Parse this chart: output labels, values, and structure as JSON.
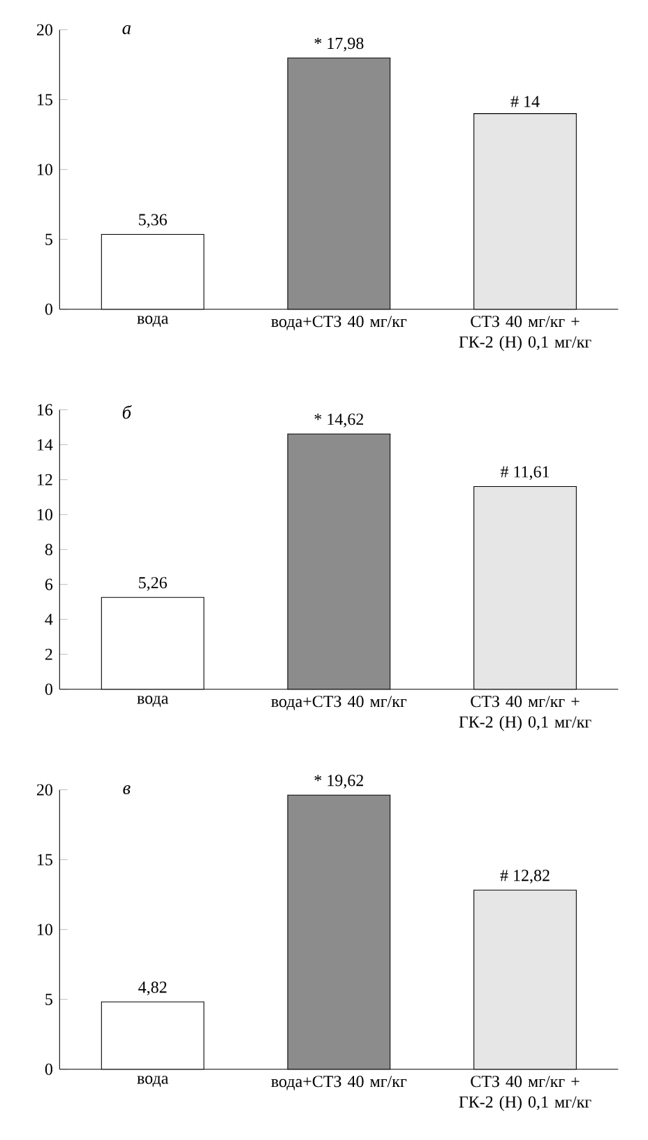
{
  "chart_data": [
    {
      "type": "bar",
      "title": "а",
      "categories": [
        "вода",
        "вода+СТЗ 40 мг/кг",
        "СТЗ 40 мг/кг + ГК-2 (Н) 0,1 мг/кг"
      ],
      "values": [
        5.36,
        17.98,
        14
      ],
      "value_labels": [
        "5,36",
        "* 17,98",
        "# 14"
      ],
      "colors": [
        "#ffffff",
        "#8c8c8c",
        "#e6e6e6"
      ],
      "ylim": [
        0,
        20
      ],
      "yticks": [
        0,
        5,
        10,
        15,
        20
      ]
    },
    {
      "type": "bar",
      "title": "б",
      "categories": [
        "вода",
        "вода+СТЗ 40 мг/кг",
        "СТЗ 40 мг/кг + ГК-2 (Н) 0,1 мг/кг"
      ],
      "values": [
        5.26,
        14.62,
        11.61
      ],
      "value_labels": [
        "5,26",
        "* 14,62",
        "# 11,61"
      ],
      "colors": [
        "#ffffff",
        "#8c8c8c",
        "#e6e6e6"
      ],
      "ylim": [
        0,
        16
      ],
      "yticks": [
        0,
        2,
        4,
        6,
        8,
        10,
        12,
        14,
        16
      ]
    },
    {
      "type": "bar",
      "title": "в",
      "categories": [
        "вода",
        "вода+СТЗ 40 мг/кг",
        "СТЗ 40 мг/кг + ГК-2 (Н) 0,1 мг/кг"
      ],
      "values": [
        4.82,
        19.62,
        12.82
      ],
      "value_labels": [
        "4,82",
        "* 19,62",
        "# 12,82"
      ],
      "colors": [
        "#ffffff",
        "#8c8c8c",
        "#e6e6e6"
      ],
      "ylim": [
        0,
        20
      ],
      "yticks": [
        0,
        5,
        10,
        15,
        20
      ]
    }
  ]
}
